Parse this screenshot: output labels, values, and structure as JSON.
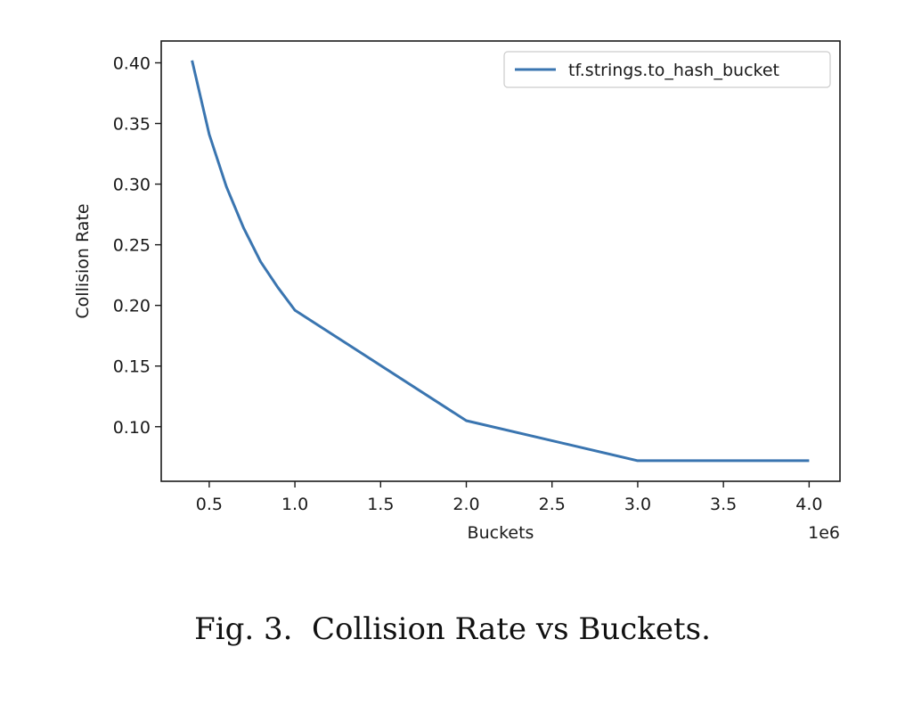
{
  "chart_data": {
    "type": "line",
    "title": "",
    "xlabel": "Buckets",
    "ylabel": "Collision Rate",
    "x_offset_label": "1e6",
    "xlim": [
      0.22,
      4.18
    ],
    "ylim": [
      0.055,
      0.418
    ],
    "x_ticks": [
      0.5,
      1.0,
      1.5,
      2.0,
      2.5,
      3.0,
      3.5,
      4.0
    ],
    "x_tick_labels": [
      "0.5",
      "1.0",
      "1.5",
      "2.0",
      "2.5",
      "3.0",
      "3.5",
      "4.0"
    ],
    "y_ticks": [
      0.1,
      0.15,
      0.2,
      0.25,
      0.3,
      0.35,
      0.4
    ],
    "y_tick_labels": [
      "0.10",
      "0.15",
      "0.20",
      "0.25",
      "0.30",
      "0.35",
      "0.40"
    ],
    "grid": false,
    "legend_position": "upper right",
    "series": [
      {
        "name": "tf.strings.to_hash_bucket",
        "color": "#3a75b0",
        "x": [
          0.4,
          0.5,
          0.6,
          0.7,
          0.8,
          0.9,
          1.0,
          2.0,
          3.0,
          4.0
        ],
        "y": [
          0.402,
          0.341,
          0.298,
          0.264,
          0.236,
          0.215,
          0.196,
          0.105,
          0.072,
          0.072
        ]
      }
    ]
  },
  "caption": "Fig. 3.  Collision Rate vs Buckets."
}
